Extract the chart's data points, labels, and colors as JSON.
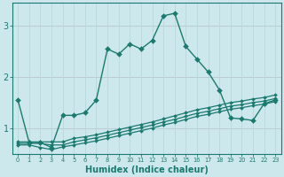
{
  "xlabel": "Humidex (Indice chaleur)",
  "bg_color": "#cde8ed",
  "grid_color": "#b0d4db",
  "line_color": "#1a7a6e",
  "x_ticks": [
    0,
    1,
    2,
    3,
    4,
    5,
    6,
    7,
    8,
    9,
    10,
    11,
    12,
    13,
    14,
    15,
    16,
    17,
    18,
    19,
    20,
    21,
    22,
    23
  ],
  "ylim": [
    0.5,
    3.45
  ],
  "xlim": [
    -0.5,
    23.5
  ],
  "yticks": [
    1,
    2,
    3
  ],
  "series": [
    {
      "x": [
        0,
        1,
        2,
        3,
        4,
        5,
        6,
        7,
        8,
        9,
        10,
        11,
        12,
        13,
        14,
        15,
        16,
        17,
        18,
        19,
        20,
        21,
        22,
        23
      ],
      "y": [
        1.55,
        0.72,
        0.72,
        0.62,
        1.25,
        1.25,
        1.3,
        1.55,
        2.55,
        2.45,
        2.65,
        2.55,
        2.72,
        3.2,
        3.25,
        2.6,
        2.35,
        2.1,
        1.75,
        1.2,
        1.18,
        1.15,
        1.48,
        1.55
      ],
      "markersize": 3,
      "linewidth": 1.0
    },
    {
      "x": [
        0,
        1,
        2,
        3,
        4,
        5,
        6,
        7,
        8,
        9,
        10,
        11,
        12,
        13,
        14,
        15,
        16,
        17,
        18,
        19,
        20,
        21,
        22,
        23
      ],
      "y": [
        0.73,
        0.73,
        0.73,
        0.73,
        0.73,
        0.8,
        0.83,
        0.87,
        0.92,
        0.97,
        1.02,
        1.07,
        1.12,
        1.18,
        1.24,
        1.3,
        1.36,
        1.4,
        1.45,
        1.5,
        1.53,
        1.57,
        1.6,
        1.65
      ],
      "markersize": 2,
      "linewidth": 0.9
    },
    {
      "x": [
        0,
        1,
        2,
        3,
        4,
        5,
        6,
        7,
        8,
        9,
        10,
        11,
        12,
        13,
        14,
        15,
        16,
        17,
        18,
        19,
        20,
        21,
        22,
        23
      ],
      "y": [
        0.7,
        0.7,
        0.7,
        0.67,
        0.67,
        0.73,
        0.77,
        0.81,
        0.86,
        0.91,
        0.96,
        1.01,
        1.06,
        1.12,
        1.17,
        1.23,
        1.29,
        1.33,
        1.38,
        1.43,
        1.46,
        1.5,
        1.53,
        1.58
      ],
      "markersize": 2,
      "linewidth": 0.9
    },
    {
      "x": [
        0,
        1,
        2,
        3,
        4,
        5,
        6,
        7,
        8,
        9,
        10,
        11,
        12,
        13,
        14,
        15,
        16,
        17,
        18,
        19,
        20,
        21,
        22,
        23
      ],
      "y": [
        0.67,
        0.67,
        0.62,
        0.58,
        0.63,
        0.67,
        0.71,
        0.75,
        0.8,
        0.85,
        0.9,
        0.95,
        1.0,
        1.06,
        1.11,
        1.17,
        1.23,
        1.27,
        1.32,
        1.37,
        1.4,
        1.44,
        1.47,
        1.52
      ],
      "markersize": 2,
      "linewidth": 0.9
    }
  ]
}
